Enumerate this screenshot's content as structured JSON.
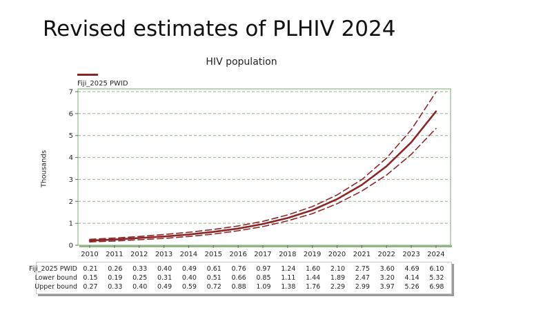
{
  "slide_title": "Revised estimates of PLHIV 2024",
  "chart_data": {
    "type": "line",
    "title": "HIV population",
    "ylabel": "Thousands",
    "xlabel": "",
    "ylim": [
      0,
      7
    ],
    "yticks": [
      "0",
      "1",
      "2",
      "3",
      "4",
      "5",
      "6",
      "7"
    ],
    "categories": [
      "2010",
      "2011",
      "2012",
      "2013",
      "2014",
      "2015",
      "2016",
      "2017",
      "2018",
      "2019",
      "2020",
      "2021",
      "2022",
      "2023",
      "2024"
    ],
    "grid": "horizontal dashed",
    "legend_position": "top-left",
    "series": [
      {
        "name": "Fiji_2025 PWID",
        "style": "solid",
        "color": "#8b2525",
        "values": [
          0.21,
          0.26,
          0.33,
          0.4,
          0.49,
          0.61,
          0.76,
          0.97,
          1.24,
          1.6,
          2.1,
          2.75,
          3.6,
          4.69,
          6.1
        ]
      },
      {
        "name": "Lower bound",
        "style": "dashed",
        "color": "#8b2525",
        "values": [
          0.15,
          0.19,
          0.25,
          0.31,
          0.4,
          0.51,
          0.66,
          0.85,
          1.11,
          1.44,
          1.89,
          2.47,
          3.2,
          4.14,
          5.32
        ]
      },
      {
        "name": "Upper bound",
        "style": "dashed",
        "color": "#8b2525",
        "values": [
          0.27,
          0.33,
          0.4,
          0.49,
          0.59,
          0.72,
          0.88,
          1.09,
          1.38,
          1.76,
          2.29,
          2.99,
          3.97,
          5.26,
          6.98
        ]
      }
    ],
    "table": {
      "rows": [
        {
          "label": "Fiji_2025 PWID",
          "cells": [
            "0.21",
            "0.26",
            "0.33",
            "0.40",
            "0.49",
            "0.61",
            "0.76",
            "0.97",
            "1.24",
            "1.60",
            "2.10",
            "2.75",
            "3.60",
            "4.69",
            "6.10"
          ]
        },
        {
          "label": "Lower bound",
          "cells": [
            "0.15",
            "0.19",
            "0.25",
            "0.31",
            "0.40",
            "0.51",
            "0.66",
            "0.85",
            "1.11",
            "1.44",
            "1.89",
            "2.47",
            "3.20",
            "4.14",
            "5.32"
          ]
        },
        {
          "label": "Upper bound",
          "cells": [
            "0.27",
            "0.33",
            "0.40",
            "0.49",
            "0.59",
            "0.72",
            "0.88",
            "1.09",
            "1.38",
            "1.76",
            "2.29",
            "2.99",
            "3.97",
            "5.26",
            "6.98"
          ]
        }
      ]
    }
  }
}
